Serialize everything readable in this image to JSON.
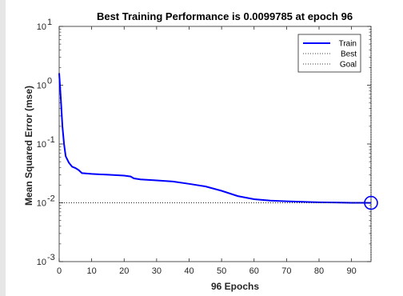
{
  "chart_data": {
    "type": "line",
    "title": "Best Training Performance is 0.0099785 at epoch 96",
    "xlabel": "96 Epochs",
    "ylabel": "Mean Squared Error  (mse)",
    "xlim": [
      0,
      96
    ],
    "ylim": [
      0.001,
      10
    ],
    "yscale": "log",
    "xticks": [
      0,
      10,
      20,
      30,
      40,
      50,
      60,
      70,
      80,
      90
    ],
    "yticks": [
      {
        "value": 0.001,
        "exp": "-3"
      },
      {
        "value": 0.01,
        "exp": "-2"
      },
      {
        "value": 0.1,
        "exp": "-1"
      },
      {
        "value": 1,
        "exp": "0"
      },
      {
        "value": 10,
        "exp": "1"
      }
    ],
    "tick_base": "10",
    "grid": false,
    "legend_position": "top-right",
    "series": [
      {
        "name": "Train",
        "style": "solid",
        "color": "#0000ff",
        "x": [
          0,
          0.5,
          1,
          1.5,
          2,
          3,
          4,
          5,
          6,
          7,
          10,
          15,
          20,
          22,
          23,
          25,
          30,
          35,
          40,
          45,
          50,
          55,
          60,
          65,
          70,
          75,
          80,
          85,
          90,
          94,
          96
        ],
        "y": [
          1.6,
          0.6,
          0.2,
          0.1,
          0.062,
          0.048,
          0.041,
          0.039,
          0.036,
          0.032,
          0.031,
          0.03,
          0.029,
          0.028,
          0.026,
          0.025,
          0.024,
          0.023,
          0.021,
          0.019,
          0.016,
          0.013,
          0.0115,
          0.0109,
          0.0106,
          0.0104,
          0.0102,
          0.0101,
          0.01,
          0.01,
          0.0099785
        ]
      },
      {
        "name": "Best",
        "style": "dotted",
        "color": "#000000",
        "x": [
          0,
          96
        ],
        "y": [
          0.0099785,
          0.0099785
        ]
      },
      {
        "name": "Goal",
        "style": "dotted",
        "color": "#000000",
        "x": [],
        "y": []
      }
    ],
    "best_marker": {
      "x": 96,
      "y": 0.0099785,
      "color": "#0000ff"
    },
    "colors": {
      "train": "#0000ff",
      "reference": "#000000"
    }
  }
}
